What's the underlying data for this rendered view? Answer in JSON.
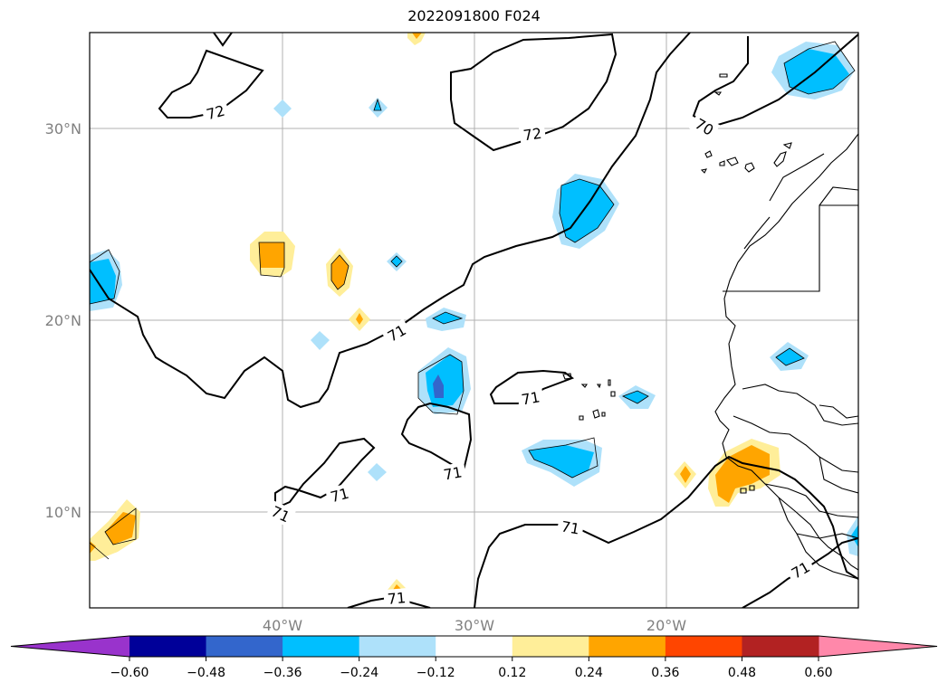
{
  "title": "2022091800 F024",
  "map": {
    "lon_range": [
      -50,
      -10
    ],
    "lat_range": [
      5,
      35
    ],
    "lat_ticks": [
      {
        "value": 30,
        "label": "30°N"
      },
      {
        "value": 20,
        "label": "20°N"
      },
      {
        "value": 10,
        "label": "10°N"
      }
    ],
    "lon_ticks": [
      {
        "value": -40,
        "label": "40°W"
      },
      {
        "value": -30,
        "label": "30°W"
      },
      {
        "value": -20,
        "label": "20°W"
      }
    ],
    "grid": true,
    "contour_labels": [
      "72",
      "72",
      "70",
      "71",
      "71",
      "71",
      "71",
      "71",
      "71",
      "71",
      "71"
    ]
  },
  "colorbar": {
    "extend": "both",
    "colors": [
      "#9933cc",
      "#000099",
      "#3366cc",
      "#00bfff",
      "#aee1fa",
      "#ffffff",
      "#ffee99",
      "#ffa500",
      "#ff4500",
      "#b22222",
      "#ff88aa"
    ],
    "tick_labels": [
      "−0.60",
      "−0.48",
      "−0.36",
      "−0.24",
      "−0.12",
      "0.12",
      "0.24",
      "0.36",
      "0.48",
      "0.60"
    ]
  }
}
